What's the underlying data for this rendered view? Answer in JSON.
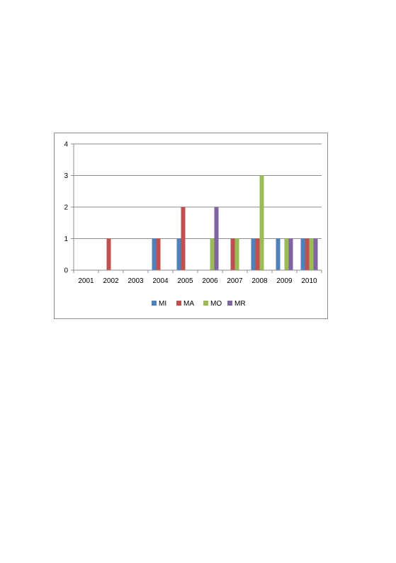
{
  "chart_data": {
    "type": "bar",
    "categories": [
      "2001",
      "2002",
      "2003",
      "2004",
      "2005",
      "2006",
      "2007",
      "2008",
      "2009",
      "2010"
    ],
    "series": [
      {
        "name": "MI",
        "color": "#4f81bd",
        "values": [
          0,
          0,
          0,
          1,
          1,
          0,
          0,
          1,
          1,
          1
        ]
      },
      {
        "name": "MA",
        "color": "#c0504d",
        "values": [
          0,
          1,
          0,
          1,
          2,
          0,
          1,
          1,
          0,
          1
        ]
      },
      {
        "name": "MO",
        "color": "#9bbb59",
        "values": [
          0,
          0,
          0,
          0,
          0,
          1,
          1,
          3,
          1,
          1
        ]
      },
      {
        "name": "MR",
        "color": "#8064a2",
        "values": [
          0,
          0,
          0,
          0,
          0,
          2,
          0,
          0,
          1,
          1
        ]
      }
    ],
    "yticks": [
      "0",
      "1",
      "2",
      "3",
      "4"
    ],
    "ylim": [
      0,
      4
    ],
    "grid": true,
    "legend_position": "bottom",
    "title": "",
    "xlabel": "",
    "ylabel": ""
  }
}
